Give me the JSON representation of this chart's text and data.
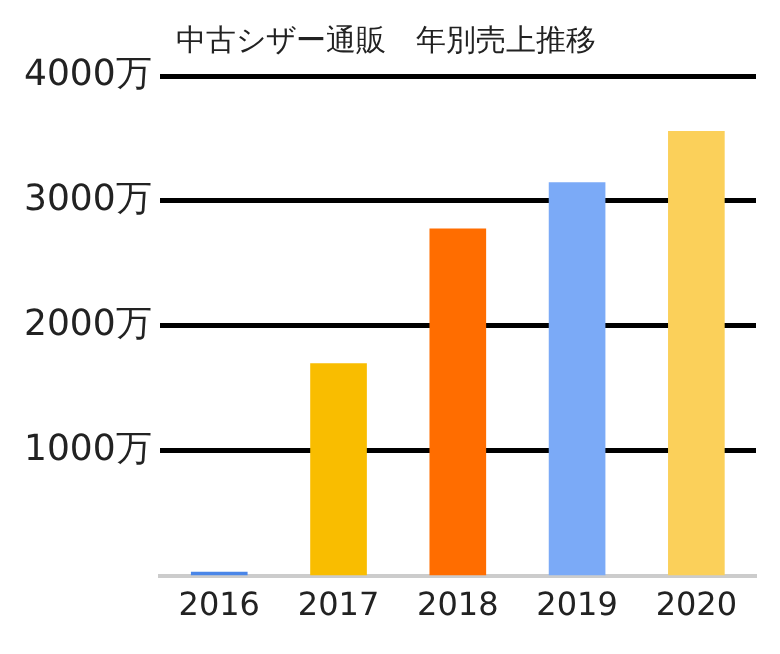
{
  "chart_data": {
    "type": "bar",
    "title": "中古シザー通販　年別売上推移",
    "categories": [
      "2016",
      "2017",
      "2018",
      "2019",
      "2020"
    ],
    "values": [
      30,
      1700,
      2780,
      3150,
      3560
    ],
    "colors": [
      "#4a86e8",
      "#f9bd00",
      "#ff6d00",
      "#7baaf7",
      "#fbd05a"
    ],
    "ylim": [
      0,
      4000
    ],
    "yticks": [
      {
        "value": 1000,
        "label": "1000万"
      },
      {
        "value": 2000,
        "label": "2000万"
      },
      {
        "value": 3000,
        "label": "3000万"
      },
      {
        "value": 4000,
        "label": "4000万"
      }
    ],
    "grid": "y",
    "legend": false
  }
}
